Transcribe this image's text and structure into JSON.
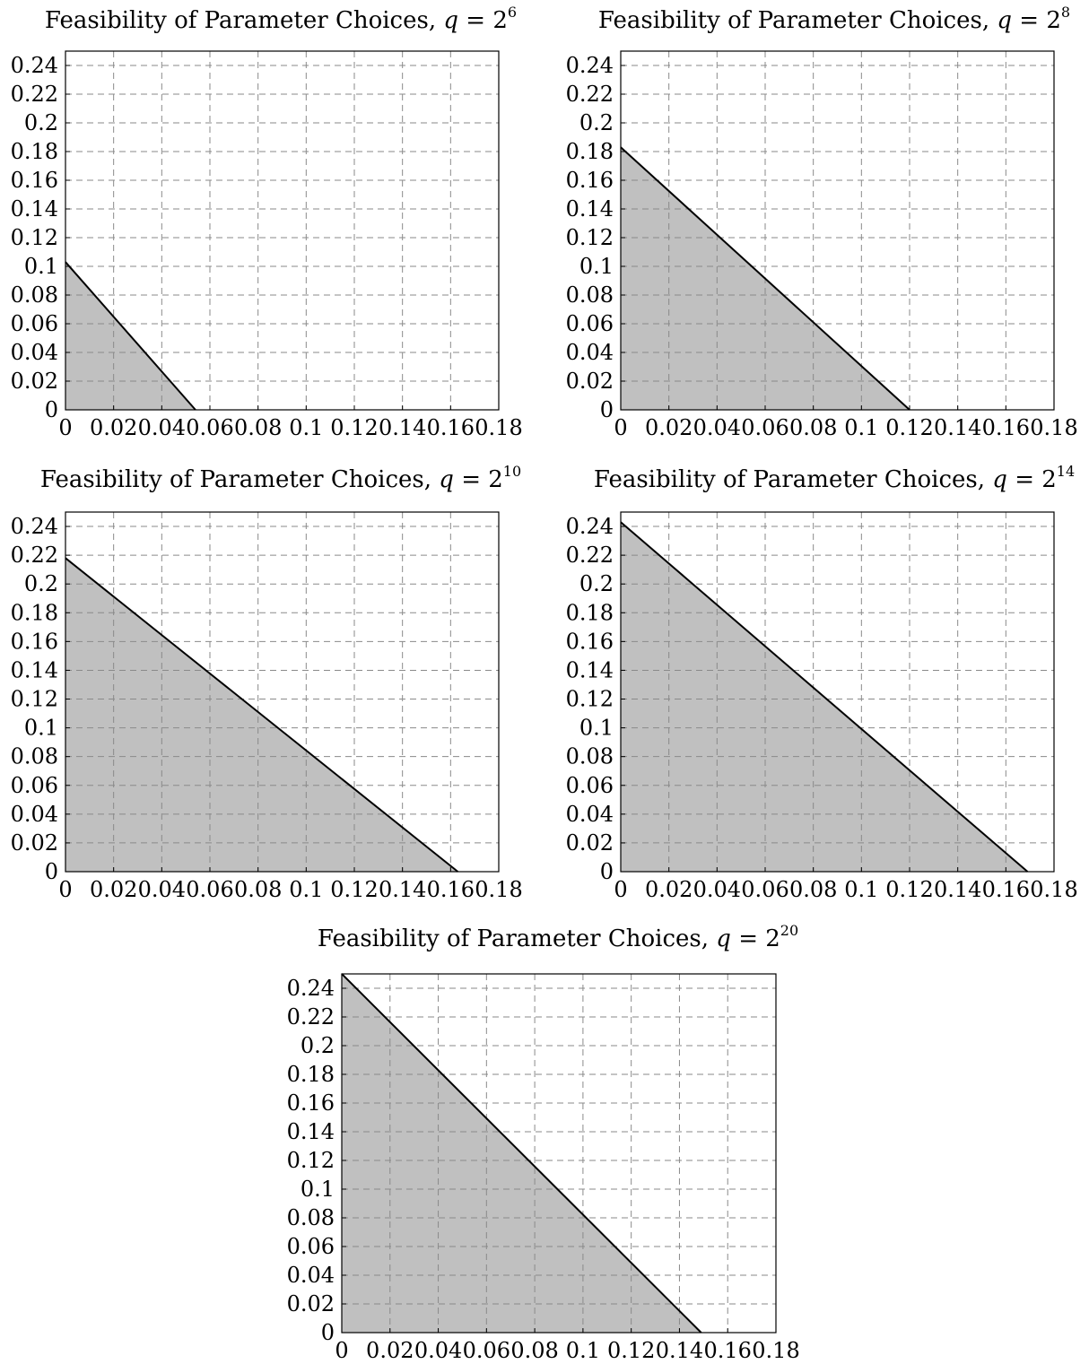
{
  "chart_data": [
    {
      "type": "area",
      "title": {
        "prefix": "Feasibility of Parameter Choices,",
        "var": "q",
        "eq": "= 2",
        "exp": "6"
      },
      "xlim": [
        0,
        0.18
      ],
      "ylim": [
        0,
        0.25
      ],
      "xticks": [
        0,
        0.02,
        0.04,
        0.06,
        0.08,
        0.1,
        0.12,
        0.14,
        0.16,
        0.18
      ],
      "xtick_labels": [
        "0",
        "0.02",
        "0.04",
        "0.06",
        "0.08",
        "0.1",
        "0.12",
        "0.14",
        "0.16",
        "0.18"
      ],
      "yticks": [
        0,
        0.02,
        0.04,
        0.06,
        0.08,
        0.1,
        0.12,
        0.14,
        0.16,
        0.18,
        0.2,
        0.22,
        0.24
      ],
      "ytick_labels": [
        "0",
        "0.02",
        "0.04",
        "0.06",
        "0.08",
        "0.1",
        "0.12",
        "0.14",
        "0.16",
        "0.18",
        "0.2",
        "0.22",
        "0.24"
      ],
      "grid": true,
      "boundary": {
        "x": [
          0,
          0.054
        ],
        "y": [
          0.103,
          0
        ]
      },
      "fill_color": "#c0c0c0"
    },
    {
      "type": "area",
      "title": {
        "prefix": "Feasibility of Parameter Choices,",
        "var": "q",
        "eq": "= 2",
        "exp": "8"
      },
      "xlim": [
        0,
        0.18
      ],
      "ylim": [
        0,
        0.25
      ],
      "xticks": [
        0,
        0.02,
        0.04,
        0.06,
        0.08,
        0.1,
        0.12,
        0.14,
        0.16,
        0.18
      ],
      "xtick_labels": [
        "0",
        "0.02",
        "0.04",
        "0.06",
        "0.08",
        "0.1",
        "0.12",
        "0.14",
        "0.16",
        "0.18"
      ],
      "yticks": [
        0,
        0.02,
        0.04,
        0.06,
        0.08,
        0.1,
        0.12,
        0.14,
        0.16,
        0.18,
        0.2,
        0.22,
        0.24
      ],
      "ytick_labels": [
        "0",
        "0.02",
        "0.04",
        "0.06",
        "0.08",
        "0.1",
        "0.12",
        "0.14",
        "0.16",
        "0.18",
        "0.2",
        "0.22",
        "0.24"
      ],
      "grid": true,
      "boundary": {
        "x": [
          0,
          0.12
        ],
        "y": [
          0.183,
          0
        ]
      },
      "fill_color": "#c0c0c0"
    },
    {
      "type": "area",
      "title": {
        "prefix": "Feasibility of Parameter Choices,",
        "var": "q",
        "eq": "= 2",
        "exp": "10"
      },
      "xlim": [
        0,
        0.18
      ],
      "ylim": [
        0,
        0.25
      ],
      "xticks": [
        0,
        0.02,
        0.04,
        0.06,
        0.08,
        0.1,
        0.12,
        0.14,
        0.16,
        0.18
      ],
      "xtick_labels": [
        "0",
        "0.02",
        "0.04",
        "0.06",
        "0.08",
        "0.1",
        "0.12",
        "0.14",
        "0.16",
        "0.18"
      ],
      "yticks": [
        0,
        0.02,
        0.04,
        0.06,
        0.08,
        0.1,
        0.12,
        0.14,
        0.16,
        0.18,
        0.2,
        0.22,
        0.24
      ],
      "ytick_labels": [
        "0",
        "0.02",
        "0.04",
        "0.06",
        "0.08",
        "0.1",
        "0.12",
        "0.14",
        "0.16",
        "0.18",
        "0.2",
        "0.22",
        "0.24"
      ],
      "grid": true,
      "boundary": {
        "x": [
          0,
          0.163
        ],
        "y": [
          0.218,
          0
        ]
      },
      "fill_color": "#c0c0c0"
    },
    {
      "type": "area",
      "title": {
        "prefix": "Feasibility of Parameter Choices,",
        "var": "q",
        "eq": "= 2",
        "exp": "14"
      },
      "xlim": [
        0,
        0.18
      ],
      "ylim": [
        0,
        0.25
      ],
      "xticks": [
        0,
        0.02,
        0.04,
        0.06,
        0.08,
        0.1,
        0.12,
        0.14,
        0.16,
        0.18
      ],
      "xtick_labels": [
        "0",
        "0.02",
        "0.04",
        "0.06",
        "0.08",
        "0.1",
        "0.12",
        "0.14",
        "0.16",
        "0.18"
      ],
      "yticks": [
        0,
        0.02,
        0.04,
        0.06,
        0.08,
        0.1,
        0.12,
        0.14,
        0.16,
        0.18,
        0.2,
        0.22,
        0.24
      ],
      "ytick_labels": [
        "0",
        "0.02",
        "0.04",
        "0.06",
        "0.08",
        "0.1",
        "0.12",
        "0.14",
        "0.16",
        "0.18",
        "0.2",
        "0.22",
        "0.24"
      ],
      "grid": true,
      "boundary": {
        "x": [
          0,
          0.169
        ],
        "y": [
          0.243,
          0
        ]
      },
      "fill_color": "#c0c0c0"
    },
    {
      "type": "area",
      "title": {
        "prefix": "Feasibility of Parameter Choices,",
        "var": "q",
        "eq": "= 2",
        "exp": "20"
      },
      "xlim": [
        0,
        0.18
      ],
      "ylim": [
        0,
        0.25
      ],
      "xticks": [
        0,
        0.02,
        0.04,
        0.06,
        0.08,
        0.1,
        0.12,
        0.14,
        0.16,
        0.18
      ],
      "xtick_labels": [
        "0",
        "0.02",
        "0.04",
        "0.06",
        "0.08",
        "0.1",
        "0.12",
        "0.14",
        "0.16",
        "0.18"
      ],
      "yticks": [
        0,
        0.02,
        0.04,
        0.06,
        0.08,
        0.1,
        0.12,
        0.14,
        0.16,
        0.18,
        0.2,
        0.22,
        0.24
      ],
      "ytick_labels": [
        "0",
        "0.02",
        "0.04",
        "0.06",
        "0.08",
        "0.1",
        "0.12",
        "0.14",
        "0.16",
        "0.18",
        "0.2",
        "0.22",
        "0.24"
      ],
      "grid": true,
      "boundary": {
        "x": [
          0,
          0.149
        ],
        "y": [
          0.25,
          0
        ]
      },
      "fill_color": "#c0c0c0"
    }
  ]
}
